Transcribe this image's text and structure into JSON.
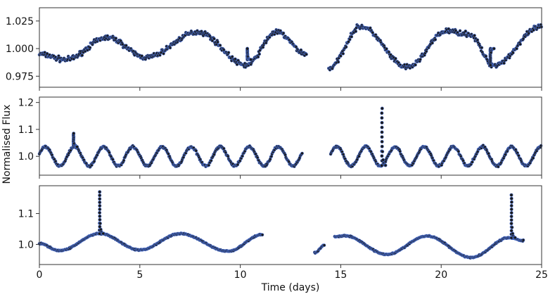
{
  "figure": {
    "xlabel": "Time (days)",
    "ylabel": "Normalised Flux"
  },
  "colors": {
    "marker_fill": "#1a1a1a",
    "marker_edge": "#4a6fd0",
    "frame": "#333333",
    "text": "#111111"
  },
  "chart_data": [
    {
      "type": "scatter",
      "panel": 1,
      "xlim": [
        0,
        25
      ],
      "ylim": [
        0.965,
        1.037
      ],
      "yticks": [
        0.975,
        1.0,
        1.025
      ],
      "ytick_labels": [
        "0.975",
        "1.000",
        "1.025"
      ],
      "xticks": [
        0,
        5,
        10,
        15,
        20,
        25
      ],
      "xtick_labels": [],
      "grid": false,
      "segments": [
        [
          0.0,
          13.3
        ],
        [
          14.4,
          25.0
        ]
      ],
      "keypoints": [
        [
          0.0,
          0.995
        ],
        [
          1.3,
          0.99
        ],
        [
          3.4,
          1.01
        ],
        [
          5.3,
          0.992
        ],
        [
          7.9,
          1.015
        ],
        [
          10.3,
          0.985
        ],
        [
          11.8,
          1.015
        ],
        [
          13.3,
          0.995
        ],
        [
          14.4,
          0.982
        ],
        [
          16.0,
          1.02
        ],
        [
          18.3,
          0.983
        ],
        [
          20.3,
          1.016
        ],
        [
          21.4,
          1.013
        ],
        [
          22.6,
          0.985
        ],
        [
          25.0,
          1.02
        ]
      ],
      "flares": [
        {
          "t": 10.35,
          "peak": 1.0,
          "base": 0.99
        },
        {
          "t": 22.45,
          "peak": 0.985,
          "base": 1.0
        }
      ]
    },
    {
      "type": "scatter",
      "panel": 2,
      "xlim": [
        0,
        25
      ],
      "ylim": [
        0.93,
        1.22
      ],
      "yticks": [
        1.0,
        1.1,
        1.2
      ],
      "ytick_labels": [
        "1.0",
        "1.1",
        "1.2"
      ],
      "xticks": [
        0,
        5,
        10,
        15,
        20,
        25
      ],
      "xtick_labels": [],
      "grid": false,
      "segments": [
        [
          0.0,
          13.1
        ],
        [
          14.5,
          25.0
        ]
      ],
      "baseline": 1.0,
      "amplitude": 0.036,
      "period_days": 1.45,
      "phase_peak_day": 0.3,
      "flares": [
        {
          "t": 1.7,
          "peak": 1.085
        },
        {
          "t": 17.05,
          "peak": 1.178
        }
      ]
    },
    {
      "type": "scatter",
      "panel": 3,
      "xlim": [
        0,
        25
      ],
      "ylim": [
        0.935,
        1.19
      ],
      "yticks": [
        1.0,
        1.1
      ],
      "ytick_labels": [
        "1.0",
        "1.1"
      ],
      "xticks": [
        0,
        5,
        10,
        15,
        20,
        25
      ],
      "xtick_labels": [
        "0",
        "5",
        "10",
        "15",
        "20",
        "25"
      ],
      "grid": false,
      "segments": [
        [
          0.0,
          11.1
        ],
        [
          13.7,
          14.2
        ],
        [
          14.7,
          24.1
        ]
      ],
      "keypoints": [
        [
          0.0,
          1.003
        ],
        [
          1.0,
          0.98
        ],
        [
          3.0,
          1.035
        ],
        [
          5.0,
          0.982
        ],
        [
          7.0,
          1.035
        ],
        [
          9.4,
          0.978
        ],
        [
          11.1,
          1.032
        ],
        [
          13.7,
          0.973
        ],
        [
          14.2,
          0.998
        ],
        [
          14.7,
          1.025
        ],
        [
          15.2,
          1.028
        ],
        [
          17.3,
          0.968
        ],
        [
          19.3,
          1.027
        ],
        [
          21.5,
          0.958
        ],
        [
          23.4,
          1.022
        ],
        [
          24.1,
          1.012
        ]
      ],
      "flares": [
        {
          "t": 3.0,
          "peak": 1.17
        },
        {
          "t": 23.5,
          "peak": 1.16
        }
      ]
    }
  ]
}
